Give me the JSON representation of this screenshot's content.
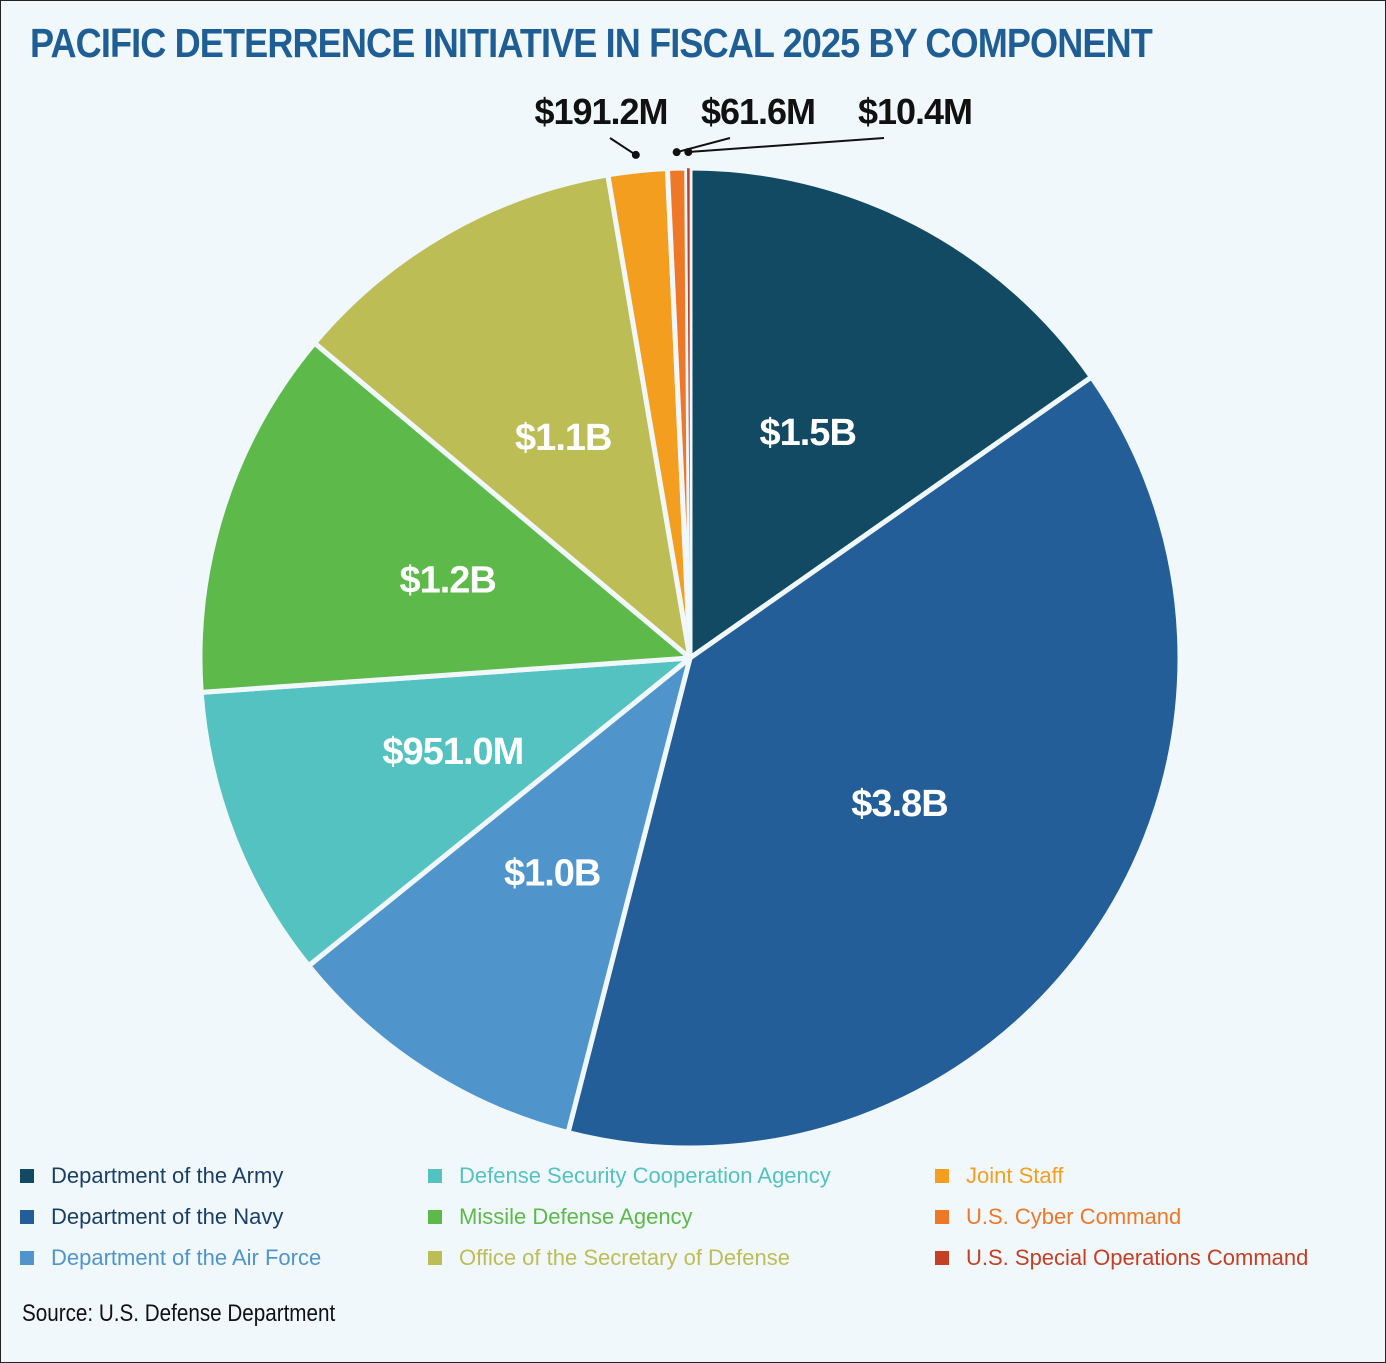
{
  "title": "PACIFIC DETERRENCE INITIATIVE IN FISCAL 2025 BY COMPONENT",
  "source": "Source: U.S. Defense Department",
  "chart_data": {
    "type": "pie",
    "title": "PACIFIC DETERRENCE INITIATIVE IN FISCAL 2025 BY COMPONENT",
    "start": "12 o'clock",
    "direction": "clockwise",
    "legend_position": "bottom",
    "slices": [
      {
        "name": "Department of the Army",
        "value": 1.5,
        "label": "$1.5B",
        "color": "#134a63"
      },
      {
        "name": "Department of the Navy",
        "value": 3.8,
        "label": "$3.8B",
        "color": "#235e99"
      },
      {
        "name": "Department of the Air Force",
        "value": 1.0,
        "label": "$1.0B",
        "color": "#5094cc"
      },
      {
        "name": "Defense Security Cooperation Agency",
        "value": 0.951,
        "label": "$951.0M",
        "color": "#53c2c0"
      },
      {
        "name": "Missile Defense Agency",
        "value": 1.2,
        "label": "$1.2B",
        "color": "#5cb94a"
      },
      {
        "name": "Office of the Secretary of Defense",
        "value": 1.1,
        "label": "$1.1B",
        "color": "#bdbd56"
      },
      {
        "name": "Joint Staff",
        "value": 0.1912,
        "label": "$191.2M",
        "color": "#f49e1f"
      },
      {
        "name": "U.S. Cyber Command",
        "value": 0.0616,
        "label": "$61.6M",
        "color": "#ef7827"
      },
      {
        "name": "U.S. Special Operations Command",
        "value": 0.0104,
        "label": "$10.4M",
        "color": "#c43f24"
      }
    ],
    "legend": [
      {
        "label": "Department of the Army",
        "color": "#134a63"
      },
      {
        "label": "Department of the Navy",
        "color": "#235e99"
      },
      {
        "label": "Department of the Air Force",
        "color": "#5094cc"
      },
      {
        "label": "Defense Security Cooperation Agency",
        "color": "#53c2c0"
      },
      {
        "label": "Missile Defense Agency",
        "color": "#5cb94a"
      },
      {
        "label": "Office of the Secretary of Defense",
        "color": "#bdbd56"
      },
      {
        "label": "Joint Staff",
        "color": "#f49e1f"
      },
      {
        "label": "U.S. Cyber Command",
        "color": "#ef7827"
      },
      {
        "label": "U.S. Special Operations Command",
        "color": "#c43f24"
      }
    ]
  }
}
